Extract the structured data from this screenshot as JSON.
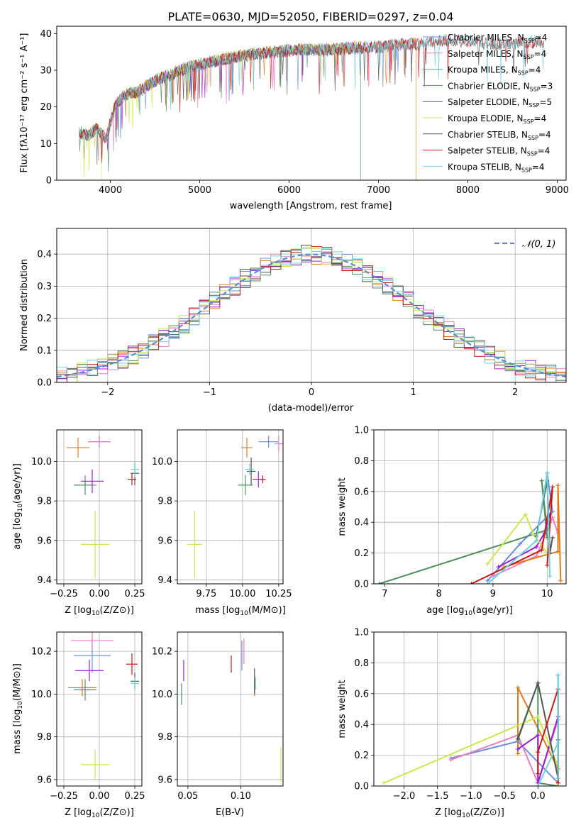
{
  "figure": {
    "title": "PLATE=0630, MJD=52050, FIBERID=0297, z=0.04"
  },
  "colors": {
    "Chabrier MILES": "#6b8fe0",
    "Salpeter MILES": "#e87fbf",
    "Kroupa MILES": "#e07b1a",
    "Chabrier ELODIE": "#4f8f5f",
    "Salpeter ELODIE": "#9b1fcf",
    "Kroupa ELODIE": "#c8ea4a",
    "Chabrier STELIB": "#555555",
    "Salpeter STELIB": "#c81818",
    "Kroupa STELIB": "#6fd3dd"
  },
  "chart_data": [
    {
      "id": "spectrum",
      "type": "line",
      "title": "",
      "xlabel": "wavelength [Angstrom, rest frame]",
      "ylabel": "Flux [fλ10⁻¹⁷ erg cm⁻² s⁻¹ A⁻¹]",
      "xlim": [
        3400,
        9100
      ],
      "ylim": [
        0,
        42
      ],
      "xticks": [
        4000,
        5000,
        6000,
        7000,
        8000,
        9000
      ],
      "yticks": [
        0,
        10,
        20,
        30,
        40
      ],
      "legend_position": "upper-right",
      "continuum_x": [
        3650,
        3750,
        3850,
        3950,
        4050,
        4150,
        4300,
        4500,
        4700,
        4900,
        5100,
        5300,
        5500,
        5700,
        5900,
        6100,
        6300,
        6500,
        6700,
        6900,
        7100,
        7300,
        7500,
        7700,
        7900,
        8100,
        8300,
        8500,
        8700,
        8850
      ],
      "continuum_y": [
        13,
        12,
        14,
        11,
        20,
        23,
        24,
        27,
        29,
        31,
        32,
        33,
        34,
        34.5,
        35,
        35.5,
        35.5,
        35.5,
        36,
        36,
        36.5,
        37,
        37,
        38,
        38,
        37.5,
        37,
        37,
        37.5,
        37.5
      ],
      "series": [
        {
          "name": "Chabrier MILES, N_SSP=4",
          "label_main": "Chabrier MILES, N",
          "label_sub": "SSP",
          "label_end": "=4",
          "xmax": 7420
        },
        {
          "name": "Salpeter MILES, N_SSP=4",
          "label_main": "Salpeter MILES, N",
          "label_sub": "SSP",
          "label_end": "=4",
          "xmax": 7420
        },
        {
          "name": "Kroupa MILES, N_SSP=4",
          "label_main": "Kroupa MILES, N",
          "label_sub": "SSP",
          "label_end": "=4",
          "xmax": 7420,
          "drop_at": 7420
        },
        {
          "name": "Chabrier ELODIE, N_SSP=3",
          "label_main": "Chabrier ELODIE, N",
          "label_sub": "SSP",
          "label_end": "=3",
          "xmax": 6800,
          "drop_at": 6800
        },
        {
          "name": "Salpeter ELODIE, N_SSP=5",
          "label_main": "Salpeter ELODIE, N",
          "label_sub": "SSP",
          "label_end": "=5",
          "xmax": 6800
        },
        {
          "name": "Kroupa ELODIE, N_SSP=4",
          "label_main": "Kroupa ELODIE, N",
          "label_sub": "SSP",
          "label_end": "=4",
          "xmax": 6800,
          "drop_at": 3900
        },
        {
          "name": "Chabrier STELIB, N_SSP=4",
          "label_main": "Chabrier STELIB, N",
          "label_sub": "SSP",
          "label_end": "=4",
          "xmax": 8850
        },
        {
          "name": "Salpeter STELIB, N_SSP=4",
          "label_main": "Salpeter STELIB, N",
          "label_sub": "SSP",
          "label_end": "=4",
          "xmax": 8850
        },
        {
          "name": "Kroupa STELIB, N_SSP=4",
          "label_main": "Kroupa STELIB, N",
          "label_sub": "SSP",
          "label_end": "=4",
          "xmax": 8850
        }
      ]
    },
    {
      "id": "residuals",
      "type": "histogram",
      "xlabel": "(data-model)/error",
      "ylabel": "Normed distribution",
      "xlim": [
        -2.5,
        2.5
      ],
      "ylim": [
        0,
        0.48
      ],
      "xticks": [
        -2,
        -1,
        0,
        1,
        2
      ],
      "xtick_labels": [
        "−2",
        "−1",
        "0",
        "1",
        "2"
      ],
      "yticks": [
        0.0,
        0.1,
        0.2,
        0.3,
        0.4
      ],
      "ytick_labels": [
        "0.0",
        "0.1",
        "0.2",
        "0.3",
        "0.4"
      ],
      "bin_width": 0.1,
      "bin_start": -2.5,
      "reference_curve": {
        "name": "N(0,1)",
        "label_main": "𝒩(0, 1)",
        "mean": 0,
        "sigma": 1,
        "style": "dashed",
        "color": "#5b8bd8"
      },
      "legend_position": "upper-right"
    },
    {
      "id": "age_vs_Z",
      "type": "scatter-errorbar",
      "xlabel_main": "Z [log",
      "xlabel_sub": "10",
      "xlabel_end": "(Z/Z⊙)]",
      "ylabel_main": "age  [log",
      "ylabel_sub": "10",
      "ylabel_end": "(age/yr)]",
      "xlim": [
        -0.3,
        0.3
      ],
      "ylim": [
        9.38,
        10.16
      ],
      "xticks": [
        -0.25,
        0.0,
        0.25
      ],
      "xtick_labels": [
        "−0.25",
        "0.00",
        "0.25"
      ],
      "yticks": [
        9.4,
        9.6,
        9.8,
        10.0
      ],
      "ytick_labels": [
        "9.4",
        "9.6",
        "9.8",
        "10.0"
      ],
      "points": [
        {
          "series": "Chabrier MILES",
          "x": 0.0,
          "y": 10.1,
          "xerr": 0.08,
          "yerr": 0.03
        },
        {
          "series": "Salpeter MILES",
          "x": 0.0,
          "y": 10.1,
          "xerr": 0.08,
          "yerr": 0.02
        },
        {
          "series": "Kroupa MILES",
          "x": -0.15,
          "y": 10.07,
          "xerr": 0.08,
          "yerr": 0.05
        },
        {
          "series": "Chabrier ELODIE",
          "x": -0.1,
          "y": 9.88,
          "xerr": 0.08,
          "yerr": 0.05
        },
        {
          "series": "Salpeter ELODIE",
          "x": -0.05,
          "y": 9.9,
          "xerr": 0.08,
          "yerr": 0.06
        },
        {
          "series": "Kroupa ELODIE",
          "x": -0.03,
          "y": 9.58,
          "xerr": 0.1,
          "yerr": 0.17
        },
        {
          "series": "Chabrier STELIB",
          "x": 0.25,
          "y": 9.94,
          "xerr": 0.03,
          "yerr": 0.06
        },
        {
          "series": "Salpeter STELIB",
          "x": 0.23,
          "y": 9.91,
          "xerr": 0.03,
          "yerr": 0.03
        },
        {
          "series": "Kroupa STELIB",
          "x": 0.25,
          "y": 9.96,
          "xerr": 0.03,
          "yerr": 0.04
        }
      ]
    },
    {
      "id": "age_vs_mass",
      "type": "scatter-errorbar",
      "xlabel_main": "mass [log",
      "xlabel_sub": "10",
      "xlabel_end": "(M/M⊙)]",
      "ylabel_main": "",
      "ylabel_sub": "",
      "ylabel_end": "",
      "xlim": [
        9.55,
        10.28
      ],
      "ylim": [
        9.38,
        10.16
      ],
      "xticks": [
        9.75,
        10.0,
        10.25
      ],
      "xtick_labels": [
        "9.75",
        "10.00",
        "10.25"
      ],
      "yticks": [
        9.4,
        9.6,
        9.8,
        10.0
      ],
      "ytick_labels": [
        "9.4",
        "9.6",
        "9.8",
        "10.0"
      ],
      "points": [
        {
          "series": "Chabrier MILES",
          "x": 10.18,
          "y": 10.1,
          "xerr": 0.07,
          "yerr": 0.03
        },
        {
          "series": "Salpeter MILES",
          "x": 10.25,
          "y": 10.09,
          "xerr": 0.03,
          "yerr": 0.04
        },
        {
          "series": "Kroupa MILES",
          "x": 10.03,
          "y": 10.07,
          "xerr": 0.04,
          "yerr": 0.05
        },
        {
          "series": "Chabrier ELODIE",
          "x": 10.02,
          "y": 9.88,
          "xerr": 0.05,
          "yerr": 0.05
        },
        {
          "series": "Salpeter ELODIE",
          "x": 10.11,
          "y": 9.91,
          "xerr": 0.04,
          "yerr": 0.04
        },
        {
          "series": "Kroupa ELODIE",
          "x": 9.67,
          "y": 9.58,
          "xerr": 0.05,
          "yerr": 0.17
        },
        {
          "series": "Chabrier STELIB",
          "x": 10.06,
          "y": 9.95,
          "xerr": 0.03,
          "yerr": 0.07
        },
        {
          "series": "Salpeter STELIB",
          "x": 10.14,
          "y": 9.91,
          "xerr": 0.02,
          "yerr": 0.02
        },
        {
          "series": "Kroupa STELIB",
          "x": 10.05,
          "y": 9.96,
          "xerr": 0.03,
          "yerr": 0.03
        }
      ]
    },
    {
      "id": "massweight_vs_age",
      "type": "line",
      "xlabel_main": "age  [log",
      "xlabel_sub": "10",
      "xlabel_end": "(age/yr)]",
      "ylabel": "mass weight",
      "xlim": [
        6.8,
        10.35
      ],
      "ylim": [
        0,
        1
      ],
      "xticks": [
        7,
        8,
        9,
        10
      ],
      "xtick_labels": [
        "7",
        "8",
        "9",
        "10"
      ],
      "yticks": [
        0,
        0.2,
        0.4,
        0.6,
        0.8,
        1.0
      ],
      "ytick_labels": [
        "0.0",
        "0.2",
        "0.4",
        "0.6",
        "0.8",
        "1.0"
      ],
      "series": [
        {
          "name": "Chabrier MILES",
          "x": [
            8.9,
            9.5,
            10.1,
            10.0
          ],
          "y": [
            0.02,
            0.26,
            0.47,
            0.72
          ]
        },
        {
          "name": "Salpeter MILES",
          "x": [
            9.0,
            9.8,
            10.1,
            10.2
          ],
          "y": [
            0.05,
            0.18,
            0.43,
            0.33
          ]
        },
        {
          "name": "Kroupa MILES",
          "x": [
            9.2,
            10.2,
            10.2,
            10.25
          ],
          "y": [
            0.11,
            0.21,
            0.64,
            0.02
          ]
        },
        {
          "name": "Chabrier ELODIE",
          "x": [
            6.9,
            10.0,
            9.9,
            10.0
          ],
          "y": [
            0.0,
            0.35,
            0.67,
            0.3
          ]
        },
        {
          "name": "Salpeter ELODIE",
          "x": [
            9.1,
            9.8,
            9.95,
            10.05
          ],
          "y": [
            0.11,
            0.24,
            0.33,
            0.45
          ]
        },
        {
          "name": "Kroupa ELODIE",
          "x": [
            8.9,
            9.6,
            9.75,
            10.0
          ],
          "y": [
            0.13,
            0.45,
            0.32,
            0.2
          ]
        },
        {
          "name": "Chabrier STELIB",
          "x": [
            9.8,
            10.0,
            10.05,
            10.1
          ],
          "y": [
            0.31,
            0.67,
            0.2,
            0.3
          ]
        },
        {
          "name": "Salpeter STELIB",
          "x": [
            8.6,
            9.9,
            10.1,
            10.0
          ],
          "y": [
            0.0,
            0.22,
            0.63,
            0.12
          ]
        },
        {
          "name": "Kroupa STELIB",
          "x": [
            8.9,
            9.8,
            10.0,
            10.05
          ],
          "y": [
            0.0,
            0.28,
            0.72,
            0.05
          ]
        }
      ]
    },
    {
      "id": "mass_vs_Z",
      "type": "scatter-errorbar",
      "xlabel_main": "Z [log",
      "xlabel_sub": "10",
      "xlabel_end": "(Z/Z⊙)]",
      "ylabel_main": "mass [log",
      "ylabel_sub": "10",
      "ylabel_end": "(M/M⊙)]",
      "xlim": [
        -0.3,
        0.3
      ],
      "ylim": [
        9.57,
        10.29
      ],
      "xticks": [
        -0.25,
        0.0,
        0.25
      ],
      "xtick_labels": [
        "−0.25",
        "0.00",
        "0.25"
      ],
      "yticks": [
        9.6,
        9.8,
        10.0,
        10.2
      ],
      "ytick_labels": [
        "9.6",
        "9.8",
        "10.0",
        "10.2"
      ],
      "points": [
        {
          "series": "Chabrier MILES",
          "x": -0.05,
          "y": 10.18,
          "xerr": 0.13,
          "yerr": 0.08
        },
        {
          "series": "Salpeter MILES",
          "x": -0.05,
          "y": 10.25,
          "xerr": 0.15,
          "yerr": 0.04
        },
        {
          "series": "Kroupa MILES",
          "x": -0.12,
          "y": 10.03,
          "xerr": 0.1,
          "yerr": 0.04
        },
        {
          "series": "Chabrier ELODIE",
          "x": -0.1,
          "y": 10.02,
          "xerr": 0.08,
          "yerr": 0.05
        },
        {
          "series": "Salpeter ELODIE",
          "x": -0.07,
          "y": 10.11,
          "xerr": 0.1,
          "yerr": 0.05
        },
        {
          "series": "Kroupa ELODIE",
          "x": -0.03,
          "y": 9.67,
          "xerr": 0.1,
          "yerr": 0.07
        },
        {
          "series": "Chabrier STELIB",
          "x": 0.25,
          "y": 10.06,
          "xerr": 0.03,
          "yerr": 0.04
        },
        {
          "series": "Salpeter STELIB",
          "x": 0.23,
          "y": 10.14,
          "xerr": 0.04,
          "yerr": 0.05
        },
        {
          "series": "Kroupa STELIB",
          "x": 0.25,
          "y": 10.05,
          "xerr": 0.03,
          "yerr": 0.03
        }
      ]
    },
    {
      "id": "mass_vs_ebv",
      "type": "scatter-errorbar",
      "xlabel_main": "E(B-V)",
      "xlabel_sub": "",
      "xlabel_end": "",
      "ylabel_main": "",
      "ylabel_sub": "",
      "ylabel_end": "",
      "xlim": [
        0.04,
        0.14
      ],
      "ylim": [
        9.57,
        10.29
      ],
      "xticks": [
        0.05,
        0.1
      ],
      "xtick_labels": [
        "0.05",
        "0.10"
      ],
      "yticks": [
        9.6,
        9.8,
        10.0,
        10.2
      ],
      "ytick_labels": [
        "9.6",
        "9.8",
        "10.0",
        "10.2"
      ],
      "points": [
        {
          "series": "Chabrier MILES",
          "x": 0.101,
          "y": 10.18,
          "xerr": 0,
          "yerr": 0.07
        },
        {
          "series": "Salpeter MILES",
          "x": 0.103,
          "y": 10.2,
          "xerr": 0,
          "yerr": 0.06
        },
        {
          "series": "Kroupa MILES",
          "x": 0.113,
          "y": 10.03,
          "xerr": 0,
          "yerr": 0.04
        },
        {
          "series": "Chabrier ELODIE",
          "x": 0.044,
          "y": 10.0,
          "xerr": 0,
          "yerr": 0.05
        },
        {
          "series": "Salpeter ELODIE",
          "x": 0.046,
          "y": 10.11,
          "xerr": 0,
          "yerr": 0.05
        },
        {
          "series": "Kroupa ELODIE",
          "x": 0.138,
          "y": 9.67,
          "xerr": 0,
          "yerr": 0.08
        },
        {
          "series": "Chabrier STELIB",
          "x": 0.113,
          "y": 10.06,
          "xerr": 0,
          "yerr": 0.06
        },
        {
          "series": "Salpeter STELIB",
          "x": 0.091,
          "y": 10.14,
          "xerr": 0,
          "yerr": 0.04
        },
        {
          "series": "Kroupa STELIB",
          "x": 0.114,
          "y": 10.05,
          "xerr": 0,
          "yerr": 0.03
        }
      ]
    },
    {
      "id": "massweight_vs_Z",
      "type": "line",
      "xlabel_main": "Z [log",
      "xlabel_sub": "10",
      "xlabel_end": "(Z/Z⊙)]",
      "ylabel": "mass weight",
      "xlim": [
        -2.45,
        0.42
      ],
      "ylim": [
        0,
        1
      ],
      "xticks": [
        -2.0,
        -1.5,
        -1.0,
        -0.5,
        0.0
      ],
      "xtick_labels": [
        "−2.0",
        "−1.5",
        "−1.0",
        "−0.5",
        "0.0"
      ],
      "yticks": [
        0,
        0.2,
        0.4,
        0.6,
        0.8,
        1.0
      ],
      "ytick_labels": [
        "0.0",
        "0.2",
        "0.4",
        "0.6",
        "0.8",
        "1.0"
      ],
      "series": [
        {
          "name": "Chabrier MILES",
          "x": [
            -1.3,
            -0.3,
            0.3,
            0.3
          ],
          "y": [
            0.18,
            0.29,
            0.02,
            0.72
          ]
        },
        {
          "name": "Salpeter MILES",
          "x": [
            -1.3,
            -0.3,
            0.0,
            0.3
          ],
          "y": [
            0.17,
            0.33,
            0.02,
            0.43
          ]
        },
        {
          "name": "Kroupa MILES",
          "x": [
            -0.3,
            -0.3,
            0.3,
            0.3
          ],
          "y": [
            0.21,
            0.64,
            0.11,
            0.02
          ]
        },
        {
          "name": "Chabrier ELODIE",
          "x": [
            -0.3,
            0.0,
            0.0,
            0.3
          ],
          "y": [
            0.3,
            0.67,
            0.02,
            0.0
          ]
        },
        {
          "name": "Salpeter ELODIE",
          "x": [
            -0.3,
            0.0,
            0.0,
            0.3
          ],
          "y": [
            0.24,
            0.33,
            0.02,
            0.45
          ]
        },
        {
          "name": "Kroupa ELODIE",
          "x": [
            -2.3,
            0.0,
            0.3,
            0.3
          ],
          "y": [
            0.02,
            0.45,
            0.13,
            0.0
          ]
        },
        {
          "name": "Chabrier STELIB",
          "x": [
            -0.3,
            0.0,
            0.3,
            0.3
          ],
          "y": [
            0.31,
            0.67,
            0.05,
            0.3
          ]
        },
        {
          "name": "Salpeter STELIB",
          "x": [
            0.0,
            0.0,
            0.3,
            0.3
          ],
          "y": [
            0.08,
            0.22,
            0.63,
            0.02
          ]
        },
        {
          "name": "Kroupa STELIB",
          "x": [
            0.0,
            0.3,
            0.3,
            0.3
          ],
          "y": [
            0.0,
            0.28,
            0.72,
            0.05
          ]
        }
      ]
    }
  ]
}
